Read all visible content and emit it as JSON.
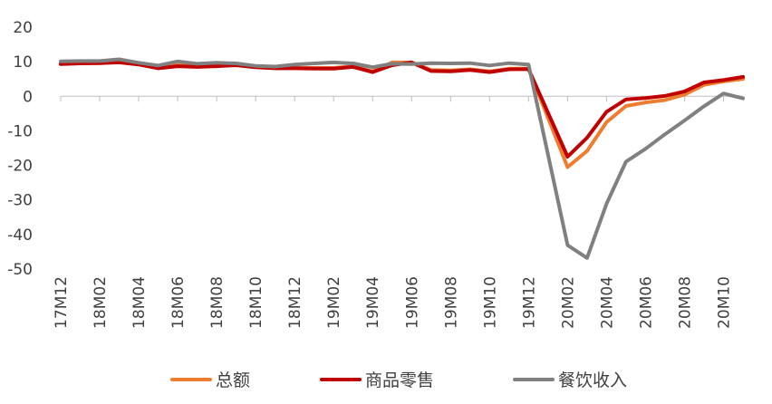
{
  "chart_data": {
    "type": "line",
    "title": "",
    "xlabel": "",
    "ylabel": "",
    "ylim": [
      -50,
      20
    ],
    "yticks": [
      20,
      10,
      0,
      -10,
      -20,
      -30,
      -40,
      -50
    ],
    "grid": false,
    "legend_position": "bottom",
    "x": [
      "17M12",
      "18M01",
      "18M02",
      "18M03",
      "18M04",
      "18M05",
      "18M06",
      "18M07",
      "18M08",
      "18M09",
      "18M10",
      "18M11",
      "18M12",
      "19M01",
      "19M02",
      "19M03",
      "19M04",
      "19M05",
      "19M06",
      "19M07",
      "19M08",
      "19M09",
      "19M10",
      "19M11",
      "19M12",
      "20M01",
      "20M02",
      "20M03",
      "20M04",
      "20M05",
      "20M06",
      "20M07",
      "20M08",
      "20M09",
      "20M10",
      "20M11"
    ],
    "x_tick_labels": [
      "17M12",
      "18M02",
      "18M04",
      "18M06",
      "18M08",
      "18M10",
      "18M12",
      "19M02",
      "19M04",
      "19M06",
      "19M08",
      "19M10",
      "19M12",
      "20M02",
      "20M04",
      "20M06",
      "20M08",
      "20M10"
    ],
    "series": [
      {
        "name": "总额",
        "color": "#ED7D31",
        "values": [
          9.4,
          9.7,
          9.7,
          10.1,
          9.4,
          8.5,
          9.0,
          8.8,
          9.0,
          9.2,
          8.6,
          8.1,
          8.2,
          8.2,
          8.2,
          8.7,
          7.2,
          9.8,
          9.8,
          7.6,
          7.5,
          7.8,
          7.2,
          8.0,
          8.0,
          null,
          -20.5,
          -15.8,
          -7.5,
          -2.8,
          -1.8,
          -1.1,
          0.5,
          3.3,
          4.3,
          5.0
        ]
      },
      {
        "name": "商品零售",
        "color": "#C00000",
        "values": [
          9.3,
          9.5,
          9.6,
          9.8,
          9.2,
          8.1,
          8.7,
          8.5,
          8.7,
          9.0,
          8.4,
          8.1,
          8.1,
          8.0,
          8.0,
          8.5,
          7.0,
          9.0,
          9.8,
          7.3,
          7.2,
          7.6,
          7.0,
          7.8,
          7.9,
          null,
          -17.5,
          -12.0,
          -4.5,
          -0.9,
          -0.5,
          0.1,
          1.4,
          4.0,
          4.7,
          5.6
        ]
      },
      {
        "name": "餐饮收入",
        "color": "#808080",
        "values": [
          10.1,
          10.2,
          10.2,
          10.7,
          9.7,
          8.9,
          10.1,
          9.4,
          9.7,
          9.5,
          8.8,
          8.6,
          9.2,
          9.5,
          9.8,
          9.5,
          8.4,
          9.4,
          9.3,
          9.6,
          9.5,
          9.6,
          8.9,
          9.6,
          9.2,
          null,
          -43.1,
          -46.8,
          -31.1,
          -18.9,
          -15.2,
          -11.0,
          -7.0,
          -2.9,
          0.8,
          -0.6
        ]
      }
    ]
  }
}
